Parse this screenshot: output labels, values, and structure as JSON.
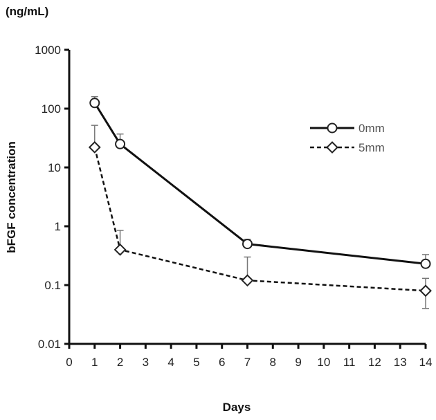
{
  "chart_data": {
    "type": "line",
    "title": "",
    "unit_label": "(ng/mL)",
    "xlabel": "Days",
    "ylabel": "bFGF concentration",
    "y_scale": "log",
    "xlim": [
      0,
      14
    ],
    "ylim": [
      0.01,
      1000
    ],
    "x_ticks": [
      0,
      1,
      2,
      3,
      4,
      5,
      6,
      7,
      8,
      9,
      10,
      11,
      12,
      13,
      14
    ],
    "x_tick_labels": [
      "0",
      "1",
      "2",
      "3",
      "4",
      "5",
      "6",
      "7",
      "8",
      "9",
      "10",
      "11",
      "12",
      "13",
      "14"
    ],
    "y_ticks": [
      0.01,
      0.1,
      1,
      10,
      100,
      1000
    ],
    "y_tick_labels": [
      "0.01",
      "0.1",
      "1",
      "10",
      "100",
      "1000"
    ],
    "legend_position": "top-right",
    "series": [
      {
        "name": "0mm",
        "marker": "circle",
        "line_style": "solid",
        "x": [
          1,
          2,
          7,
          14
        ],
        "y": [
          125,
          25,
          0.5,
          0.23
        ],
        "error_upper": [
          160,
          37,
          0.6,
          0.33
        ]
      },
      {
        "name": "5mm",
        "marker": "diamond",
        "line_style": "dashed",
        "x": [
          1,
          2,
          7,
          14
        ],
        "y": [
          22,
          0.4,
          0.12,
          0.08
        ],
        "error_upper": [
          52,
          0.85,
          0.3,
          0.13
        ],
        "error_lower": [
          null,
          null,
          null,
          0.04
        ]
      }
    ]
  }
}
